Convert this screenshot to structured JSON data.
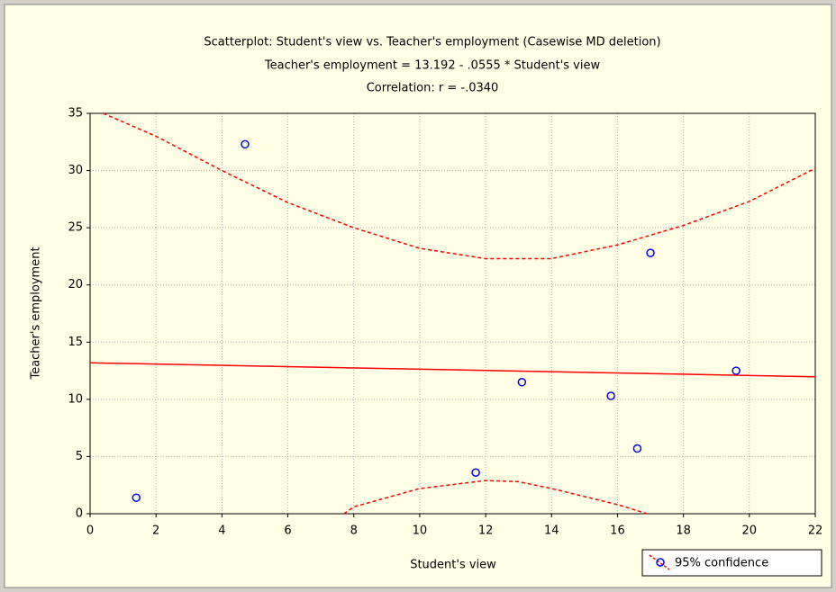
{
  "chart_data": {
    "type": "scatter",
    "title": "Scatterplot: Student's view vs. Teacher's employment (Casewise MD deletion)",
    "subtitle": [
      "Teacher's employment = 13.192 - .0555  * Student's view",
      "Correlation: r = -.0340"
    ],
    "x_label": "Student's view",
    "y_label": "Teacher's employment",
    "x": [
      1.4,
      4.7,
      11.7,
      13.1,
      15.8,
      16.6,
      17.0,
      19.6
    ],
    "y": [
      1.4,
      32.3,
      3.6,
      11.5,
      10.3,
      5.7,
      22.8,
      12.5
    ],
    "point_color": "#0000ff",
    "fit": {
      "x": [
        0,
        22
      ],
      "y": [
        13.192,
        11.971
      ],
      "color": "#ff0000"
    },
    "confidence": {
      "name": "95% confidence",
      "color": "#ff0000",
      "upper": {
        "x": [
          0.4,
          2,
          4,
          6,
          8,
          10,
          12,
          14,
          16,
          18,
          20,
          22
        ],
        "y": [
          35,
          33,
          30,
          27.2,
          25,
          23.2,
          22.3,
          22.3,
          23.5,
          25.2,
          27.3,
          30.2
        ]
      },
      "lower": {
        "x": [
          7.7,
          8,
          10,
          12,
          13,
          14,
          16,
          16.9
        ],
        "y": [
          0,
          0.6,
          2.2,
          2.9,
          2.8,
          2.2,
          0.8,
          0
        ]
      }
    },
    "xlim": [
      0,
      22
    ],
    "ylim": [
      0,
      35
    ],
    "xticks": [
      0,
      2,
      4,
      6,
      8,
      10,
      12,
      14,
      16,
      18,
      20,
      22
    ],
    "yticks": [
      0,
      5,
      10,
      15,
      20,
      25,
      30,
      35
    ],
    "grid": true,
    "legend": "lower-right"
  }
}
